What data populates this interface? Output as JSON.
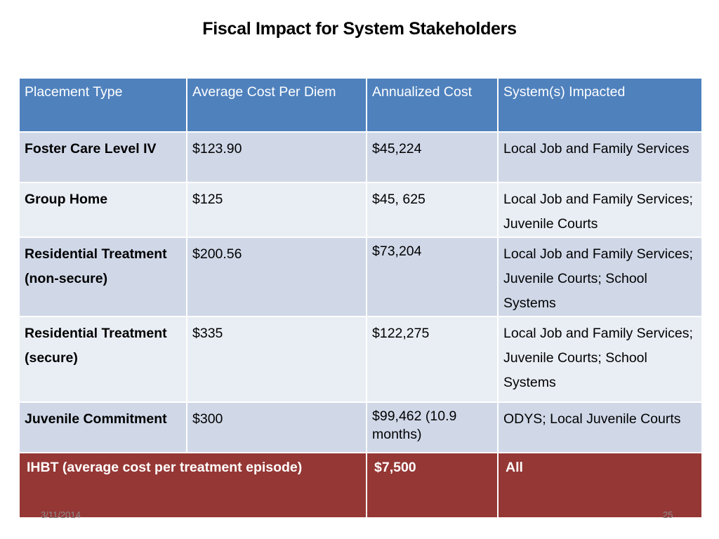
{
  "title": "Fiscal Impact for System Stakeholders",
  "table": {
    "headers": [
      "Placement Type",
      "Average Cost Per Diem",
      "Annualized Cost",
      "System(s) Impacted"
    ],
    "rows": [
      [
        "Foster Care  Level IV",
        "$123.90",
        "$45,224",
        "Local Job and Family Services"
      ],
      [
        "Group Home",
        "$125",
        "$45, 625",
        "Local Job and Family Services; Juvenile Courts"
      ],
      [
        "Residential Treatment (non-secure)",
        "$200.56",
        "$73,204",
        "Local Job and Family Services; Juvenile Courts; School Systems"
      ],
      [
        "Residential Treatment (secure)",
        "$335",
        "$122,275",
        "Local Job and Family Services; Juvenile Courts; School Systems"
      ],
      [
        "Juvenile Commitment",
        "$300",
        "$99,462 (10.9 months)",
        "ODYS; Local Juvenile Courts"
      ]
    ],
    "total_row": [
      "IHBT (average cost per  treatment episode)",
      "$7,500",
      "All"
    ]
  },
  "footer": {
    "date": "3/11/2014",
    "page": "25"
  },
  "colors": {
    "header": "#4f81bd",
    "row_odd": "#d0d8e8",
    "row_even": "#e9edf4",
    "total": "#953735"
  }
}
